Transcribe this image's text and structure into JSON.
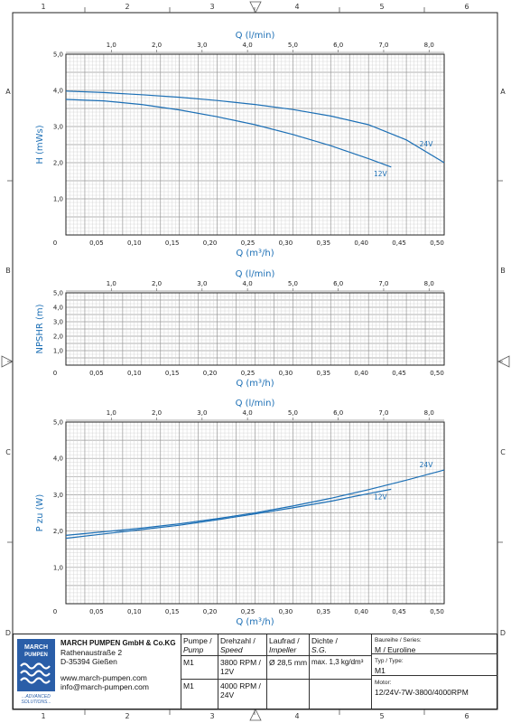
{
  "frame": {
    "col_labels": [
      "1",
      "2",
      "3",
      "4",
      "5",
      "6"
    ],
    "row_labels": [
      "A",
      "B",
      "C",
      "D"
    ]
  },
  "colors": {
    "curve": "#1c6fb5",
    "axis_text": "#1c6fb5",
    "grid": "#bdbdbd",
    "frame": "#222222"
  },
  "chart_data": [
    {
      "type": "line",
      "xlabel": "Q (m³/h)",
      "x2label": "Q (l/min)",
      "ylabel": "H (mWs)",
      "xlim": [
        0,
        0.5
      ],
      "ylim": [
        0,
        5.0
      ],
      "x_ticks": [
        "0",
        "0,05",
        "0,10",
        "0,15",
        "0,20",
        "0,25",
        "0,30",
        "0,35",
        "0,40",
        "0,45",
        "0,50"
      ],
      "y_ticks": [
        "1,0",
        "2,0",
        "3,0",
        "4,0",
        "5,0"
      ],
      "x2_ticks": [
        "1,0",
        "2,0",
        "3,0",
        "4,0",
        "5,0",
        "6,0",
        "7,0",
        "8,0"
      ],
      "grid": true,
      "series": [
        {
          "name": "24V",
          "x": [
            0.0,
            0.05,
            0.1,
            0.15,
            0.2,
            0.25,
            0.3,
            0.35,
            0.4,
            0.45,
            0.5
          ],
          "y": [
            3.98,
            3.94,
            3.88,
            3.81,
            3.72,
            3.61,
            3.47,
            3.29,
            3.05,
            2.63,
            2.0
          ]
        },
        {
          "name": "12V",
          "x": [
            0.0,
            0.05,
            0.1,
            0.15,
            0.2,
            0.25,
            0.3,
            0.35,
            0.4,
            0.43
          ],
          "y": [
            3.75,
            3.71,
            3.61,
            3.46,
            3.27,
            3.05,
            2.78,
            2.47,
            2.11,
            1.88
          ]
        }
      ]
    },
    {
      "type": "line",
      "xlabel": "Q (m³/h)",
      "x2label": "Q (l/min)",
      "ylabel": "NPSHR (m)",
      "xlim": [
        0,
        0.5
      ],
      "ylim": [
        0,
        5.0
      ],
      "x_ticks": [
        "0",
        "0,05",
        "0,10",
        "0,15",
        "0,20",
        "0,25",
        "0,30",
        "0,35",
        "0,40",
        "0,45",
        "0,50"
      ],
      "y_ticks": [
        "1,0",
        "2,0",
        "3,0",
        "4,0",
        "5,0"
      ],
      "x2_ticks": [
        "1,0",
        "2,0",
        "3,0",
        "4,0",
        "5,0",
        "6,0",
        "7,0",
        "8,0"
      ],
      "grid": true,
      "series": []
    },
    {
      "type": "line",
      "xlabel": "Q (m³/h)",
      "x2label": "Q (l/min)",
      "ylabel": "P zu (W)",
      "xlim": [
        0,
        0.5
      ],
      "ylim": [
        0,
        5.0
      ],
      "x_ticks": [
        "0",
        "0,05",
        "0,10",
        "0,15",
        "0,20",
        "0,25",
        "0,30",
        "0,35",
        "0,40",
        "0,45",
        "0,50"
      ],
      "y_ticks": [
        "1,0",
        "2,0",
        "3,0",
        "4,0",
        "5,0"
      ],
      "x2_ticks": [
        "1,0",
        "2,0",
        "3,0",
        "4,0",
        "5,0",
        "6,0",
        "7,0",
        "8,0"
      ],
      "grid": true,
      "series": [
        {
          "name": "24V",
          "x": [
            0.0,
            0.05,
            0.1,
            0.15,
            0.2,
            0.25,
            0.3,
            0.35,
            0.4,
            0.45,
            0.5
          ],
          "y": [
            1.88,
            1.98,
            2.08,
            2.2,
            2.34,
            2.5,
            2.69,
            2.9,
            3.14,
            3.4,
            3.68
          ]
        },
        {
          "name": "12V",
          "x": [
            0.0,
            0.05,
            0.1,
            0.15,
            0.2,
            0.25,
            0.3,
            0.35,
            0.4,
            0.43
          ],
          "y": [
            1.8,
            1.92,
            2.04,
            2.16,
            2.31,
            2.47,
            2.64,
            2.82,
            3.03,
            3.15
          ]
        }
      ]
    }
  ],
  "titleblock": {
    "company": "MARCH PUMPEN GmbH & Co.KG",
    "street": "Rathenaustraße 2",
    "city": "D-35394 Gießen",
    "web": "www.march-pumpen.com",
    "email": "info@march-pumpen.com",
    "logo_top": "MARCH",
    "logo_bottom": "PUMPEN",
    "logo_tag1": "...ADVANCED",
    "logo_tag2": "SOLUTIONS...",
    "col_pump": "Pumpe /",
    "col_pump_en": "Pump",
    "col_speed": "Drehzahl /",
    "col_speed_en": "Speed",
    "col_impeller": "Laufrad /",
    "col_impeller_en": "Impeller",
    "col_sg": "Dichte /",
    "col_sg_en": "S.G.",
    "row1_pump": "M1",
    "row1_speed_a": "3800 RPM /",
    "row1_speed_b": "12V",
    "row1_impeller": "Ø 28,5 mm",
    "row1_sg": "max. 1,3 kg/dm³",
    "row2_pump": "M1",
    "row2_speed_a": "4000 RPM /",
    "row2_speed_b": "24V",
    "series_label": "Baureihe / Series:",
    "series_value": "M / Euroline",
    "type_label": "Typ / Type:",
    "type_value": "M1",
    "motor_label": "Motor:",
    "motor_value": "12/24V-7W-3800/4000RPM"
  }
}
